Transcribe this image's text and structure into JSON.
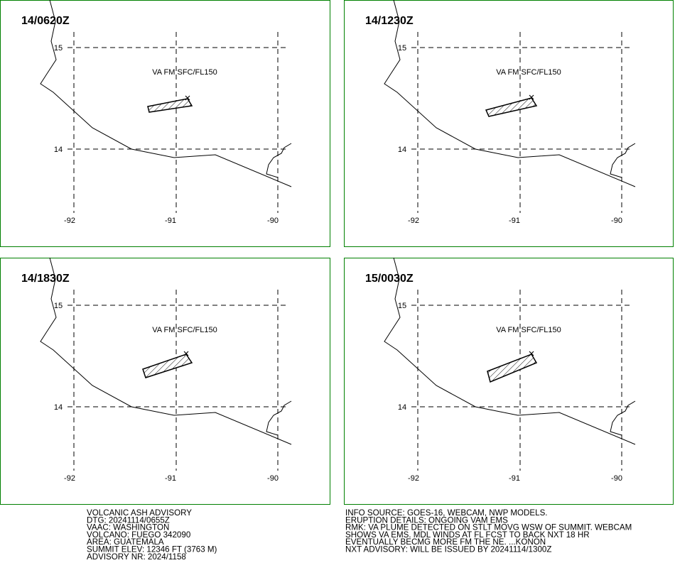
{
  "panels": [
    {
      "time": "14/0620Z",
      "label": "VA FM SFC/FL150",
      "lat_labels": [
        "15",
        "14"
      ],
      "lon_labels": [
        "-92",
        "-91",
        "-90"
      ]
    },
    {
      "time": "14/1230Z",
      "label": "VA FM SFC/FL150",
      "lat_labels": [
        "15",
        "14"
      ],
      "lon_labels": [
        "-92",
        "-91",
        "-90"
      ]
    },
    {
      "time": "14/1830Z",
      "label": "VA FM SFC/FL150",
      "lat_labels": [
        "15",
        "14"
      ],
      "lon_labels": [
        "-92",
        "-91",
        "-90"
      ]
    },
    {
      "time": "15/0030Z",
      "label": "VA FM SFC/FL150",
      "lat_labels": [
        "15",
        "14"
      ],
      "lon_labels": [
        "-92",
        "-91",
        "-90"
      ]
    }
  ],
  "advisory_left": [
    "VOLCANIC ASH ADVISORY",
    "DTG: 20241114/0655Z",
    "VAAC: WASHINGTON",
    "VOLCANO: FUEGO 342090",
    "AREA: GUATEMALA",
    "SUMMIT ELEV: 12346 FT (3763 M)",
    "ADVISORY NR: 2024/1158"
  ],
  "advisory_right": [
    "INFO SOURCE: GOES-16, WEBCAM, NWP MODELS.",
    "ERUPTION DETAILS: ONGOING VAM EMS",
    "RMK: VA PLUME DETECTED ON STLT MOVG WSW OF SUMMIT. WEBCAM",
    "SHOWS VA EMS. MDL WINDS AT FL FCST TO BACK NXT 18 HR",
    "EVENTUALLY BECMG MORE FM THE NE. ...KONON",
    "NXT ADVISORY: WILL BE ISSUED BY 20241114/1300Z"
  ]
}
